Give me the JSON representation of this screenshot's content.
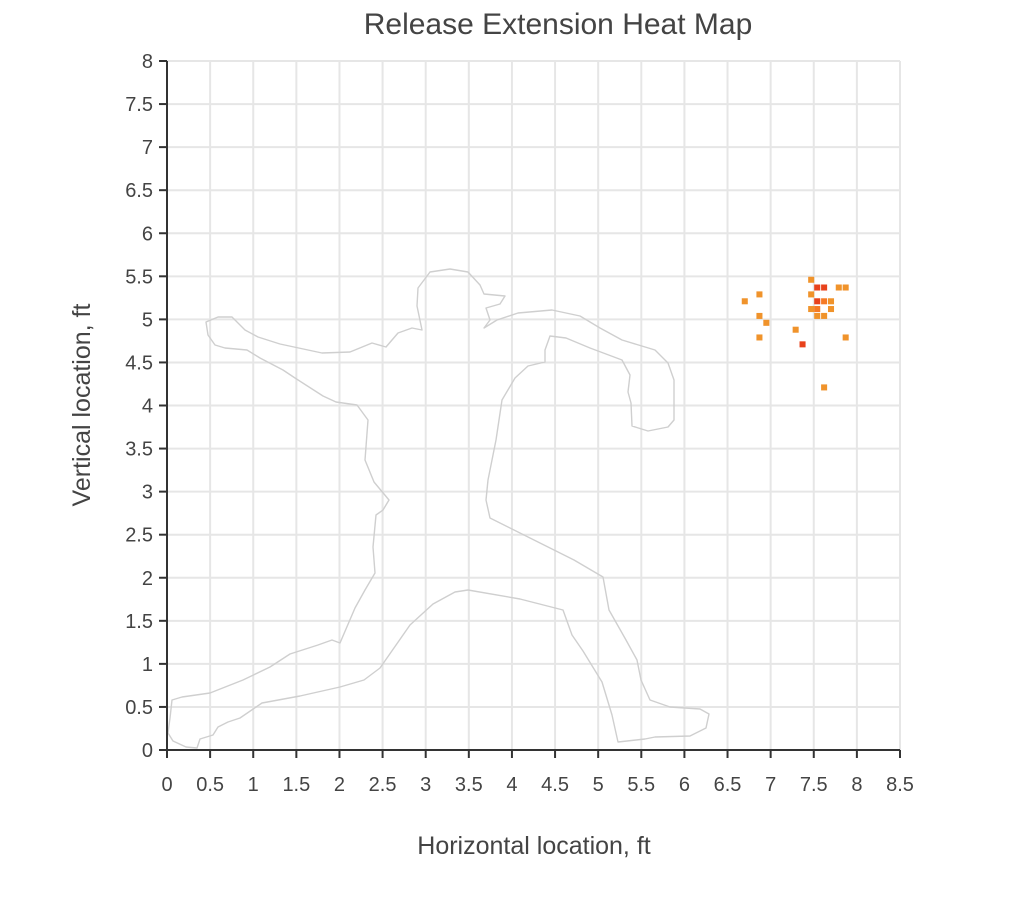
{
  "chart_data": {
    "type": "heatmap",
    "title": "Release Extension Heat Map",
    "xlabel": "Horizontal location, ft",
    "ylabel": "Vertical location, ft",
    "xlim": [
      0,
      8.5
    ],
    "ylim": [
      0,
      8
    ],
    "xticks": [
      "0",
      "0.5",
      "1",
      "1.5",
      "2",
      "2.5",
      "3",
      "3.5",
      "4",
      "4.5",
      "5",
      "5.5",
      "6",
      "6.5",
      "7",
      "7.5",
      "8",
      "8.5"
    ],
    "yticks": [
      "0",
      "0.5",
      "1",
      "1.5",
      "2",
      "2.5",
      "3",
      "3.5",
      "4",
      "4.5",
      "5",
      "5.5",
      "6",
      "6.5",
      "7",
      "7.5",
      "8"
    ],
    "grid": true,
    "cell_size_ft": 0.07,
    "colors": {
      "low": "#f0932b",
      "mid": "#f57a25",
      "high": "#e8421c"
    },
    "points": [
      {
        "x": 6.7,
        "y": 5.21,
        "level": "low"
      },
      {
        "x": 6.87,
        "y": 5.29,
        "level": "low"
      },
      {
        "x": 6.87,
        "y": 5.04,
        "level": "low"
      },
      {
        "x": 6.95,
        "y": 4.96,
        "level": "low"
      },
      {
        "x": 6.87,
        "y": 4.79,
        "level": "low"
      },
      {
        "x": 7.29,
        "y": 4.88,
        "level": "low"
      },
      {
        "x": 7.37,
        "y": 4.71,
        "level": "high"
      },
      {
        "x": 7.47,
        "y": 5.46,
        "level": "low"
      },
      {
        "x": 7.47,
        "y": 5.29,
        "level": "low"
      },
      {
        "x": 7.47,
        "y": 5.12,
        "level": "low"
      },
      {
        "x": 7.54,
        "y": 5.37,
        "level": "high"
      },
      {
        "x": 7.62,
        "y": 5.37,
        "level": "high"
      },
      {
        "x": 7.54,
        "y": 5.21,
        "level": "high"
      },
      {
        "x": 7.62,
        "y": 5.21,
        "level": "mid"
      },
      {
        "x": 7.7,
        "y": 5.21,
        "level": "low"
      },
      {
        "x": 7.54,
        "y": 5.12,
        "level": "mid"
      },
      {
        "x": 7.7,
        "y": 5.12,
        "level": "low"
      },
      {
        "x": 7.54,
        "y": 5.04,
        "level": "low"
      },
      {
        "x": 7.62,
        "y": 5.04,
        "level": "low"
      },
      {
        "x": 7.79,
        "y": 5.37,
        "level": "low"
      },
      {
        "x": 7.87,
        "y": 5.37,
        "level": "low"
      },
      {
        "x": 7.87,
        "y": 4.79,
        "level": "low"
      },
      {
        "x": 7.62,
        "y": 4.21,
        "level": "low"
      }
    ]
  }
}
